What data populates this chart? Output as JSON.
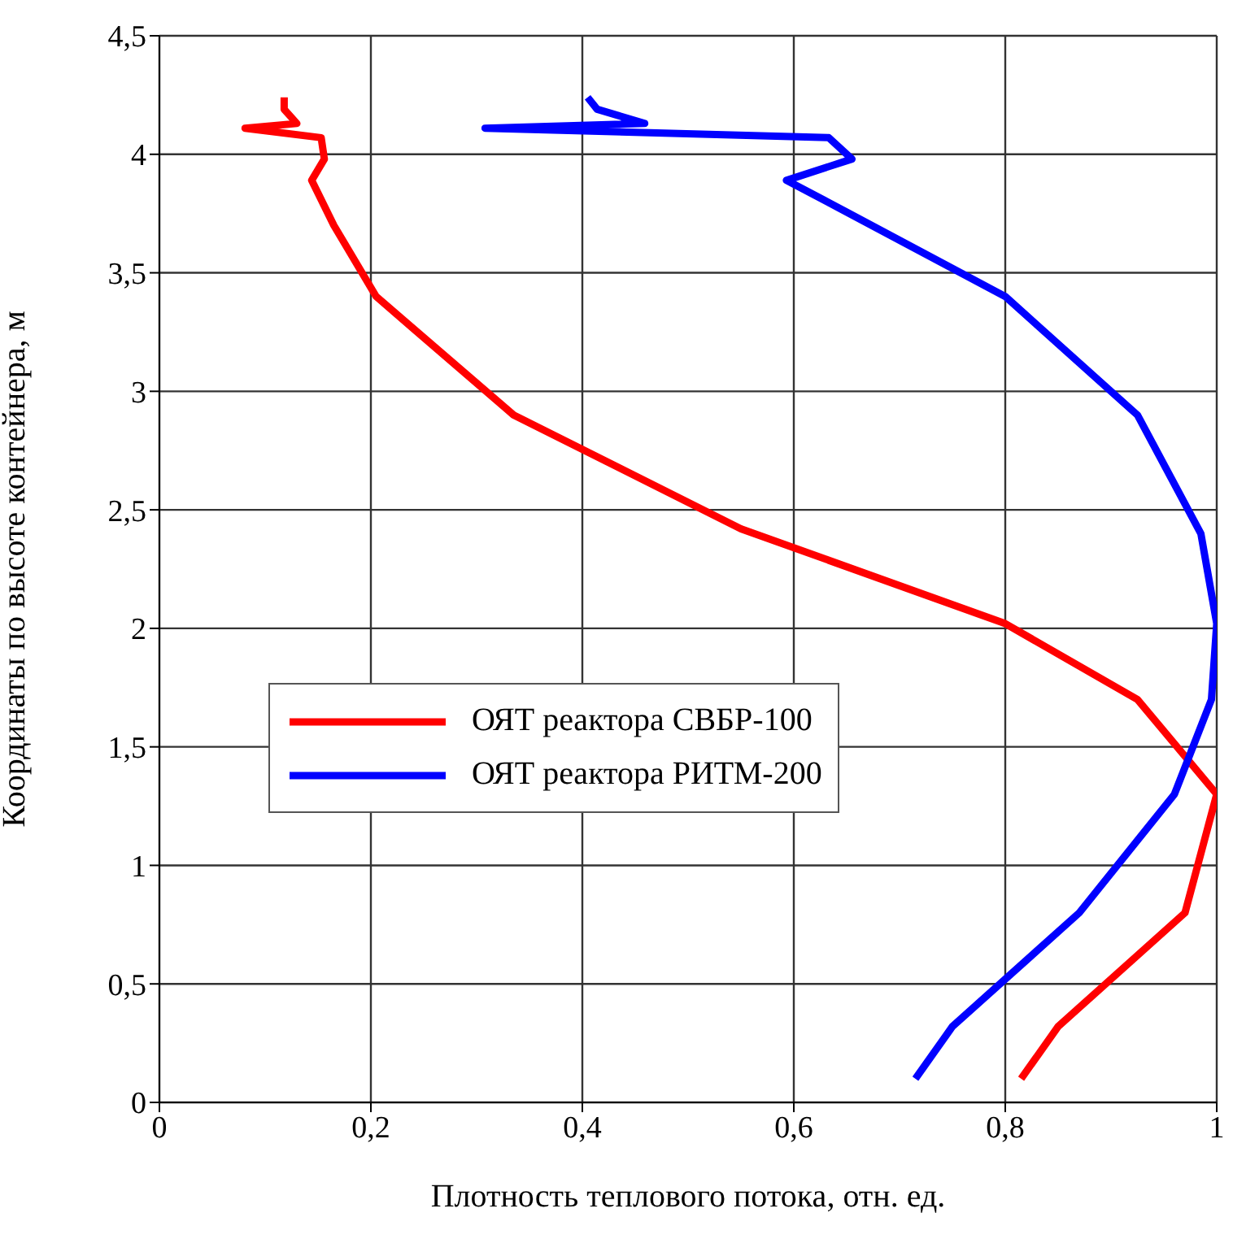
{
  "chart_data": {
    "type": "line",
    "xlabel": "Плотность теплового потока, отн. ед.",
    "ylabel": "Координаты по высоте контейнера, м",
    "xlim": [
      0,
      1
    ],
    "ylim": [
      0,
      4.5
    ],
    "xticks": [
      0,
      {
        "value": 0.2,
        "label": "0,2"
      },
      {
        "value": 0.4,
        "label": "0,4"
      },
      {
        "value": 0.6,
        "label": "0,6"
      },
      {
        "value": 0.8,
        "label": "0,8"
      },
      1
    ],
    "yticks": [
      0,
      {
        "value": 0.5,
        "label": "0,5"
      },
      1,
      {
        "value": 1.5,
        "label": "1,5"
      },
      2,
      {
        "value": 2.5,
        "label": "2,5"
      },
      3,
      {
        "value": 3.5,
        "label": "3,5"
      },
      4,
      {
        "value": 4.5,
        "label": "4,5"
      }
    ],
    "grid": true,
    "legend": "left",
    "marker": "none",
    "line_style": "solid",
    "series": [
      {
        "name": "ОЯТ реактора СВБР-100",
        "color": "#ff0000",
        "x": [
          0.815,
          0.85,
          0.97,
          1.0,
          0.925,
          0.8,
          0.55,
          0.335,
          0.205,
          0.165,
          0.144,
          0.156,
          0.153,
          0.081,
          0.13,
          0.118,
          0.118
        ],
        "values": [
          0.1,
          0.32,
          0.8,
          1.3,
          1.7,
          2.02,
          2.42,
          2.9,
          3.4,
          3.7,
          3.89,
          3.98,
          4.07,
          4.11,
          4.13,
          4.19,
          4.24
        ]
      },
      {
        "name": "ОЯТ реактора РИТМ-200",
        "color": "#0000ff",
        "x": [
          0.715,
          0.75,
          0.87,
          0.96,
          0.995,
          1.0,
          0.985,
          0.925,
          0.8,
          0.64,
          0.593,
          0.655,
          0.633,
          0.308,
          0.459,
          0.414,
          0.405
        ],
        "values": [
          0.1,
          0.32,
          0.8,
          1.3,
          1.7,
          2.02,
          2.4,
          2.9,
          3.4,
          3.78,
          3.89,
          3.98,
          4.07,
          4.11,
          4.13,
          4.19,
          4.24
        ]
      }
    ]
  }
}
